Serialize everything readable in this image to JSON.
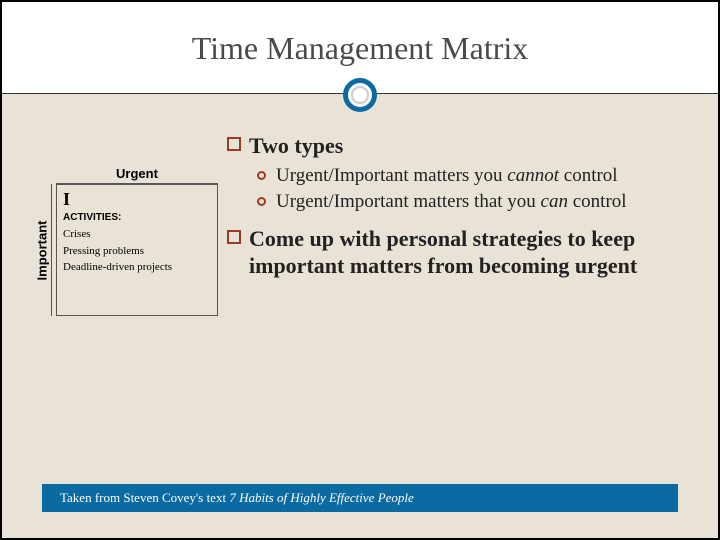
{
  "slide": {
    "title": "Time Management Matrix",
    "accent_color": "#0a6aa1",
    "bullet_color": "#9e3a24",
    "background_color": "#e8e3d6",
    "bullets": [
      {
        "text": "Two types",
        "bold": true
      },
      {
        "text": "Come up with personal strategies to keep important matters from becoming urgent",
        "bold": true
      }
    ],
    "sub_bullets": [
      {
        "prefix": "Urgent/Important matters you ",
        "emph": "cannot",
        "suffix": " control"
      },
      {
        "prefix": "Urgent/Important matters that you ",
        "emph": "can",
        "suffix": " control"
      }
    ],
    "matrix": {
      "top_label": "Urgent",
      "side_label": "Important",
      "quadrant": "I",
      "activities_heading": "ACTIVITIES:",
      "activities": [
        "Crises",
        "Pressing problems",
        "Deadline-driven projects"
      ]
    },
    "footer": {
      "prefix": "Taken from Steven Covey's text ",
      "ital": "7 Habits of Highly Effective People"
    }
  }
}
